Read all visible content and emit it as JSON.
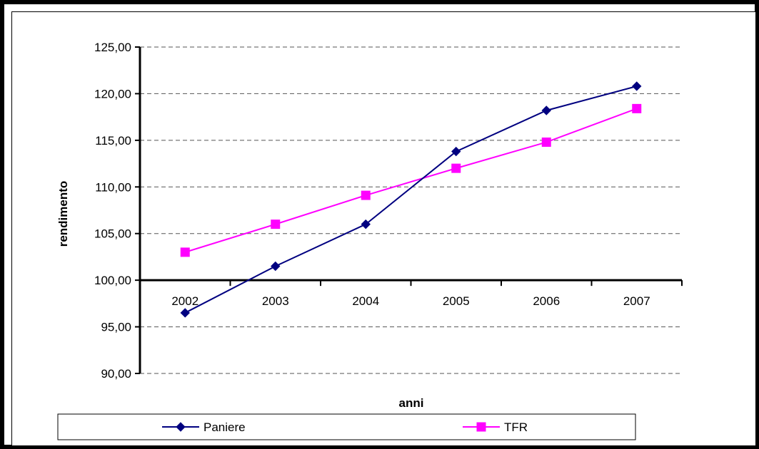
{
  "chart_data": {
    "type": "line",
    "title": "",
    "xlabel": "anni",
    "ylabel": "rendimento",
    "categories": [
      "2002",
      "2003",
      "2004",
      "2005",
      "2006",
      "2007"
    ],
    "ylim": [
      90,
      125
    ],
    "yticks": [
      "90,00",
      "95,00",
      "100,00",
      "105,00",
      "110,00",
      "115,00",
      "120,00",
      "125,00"
    ],
    "x_axis_crosses_at": 100,
    "grid": "horizontal dashed",
    "legend_position": "bottom",
    "series": [
      {
        "name": "Paniere",
        "color": "#000080",
        "marker": "diamond",
        "values": [
          96.5,
          101.5,
          106.0,
          113.8,
          118.2,
          120.8
        ]
      },
      {
        "name": "TFR",
        "color": "#ff00ff",
        "marker": "square",
        "values": [
          103.0,
          106.0,
          109.1,
          112.0,
          114.8,
          118.4
        ]
      }
    ]
  }
}
